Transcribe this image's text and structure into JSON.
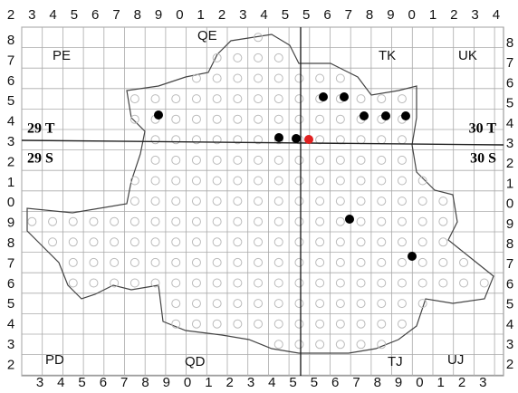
{
  "map": {
    "top_labels": [
      "2",
      "3",
      "4",
      "5",
      "6",
      "7",
      "8",
      "9",
      "0",
      "1",
      "2",
      "3",
      "4",
      "5",
      "5",
      "6",
      "7",
      "8",
      "9",
      "0",
      "1",
      "2",
      "3",
      "4"
    ],
    "bottom_labels": [
      "3",
      "4",
      "5",
      "6",
      "7",
      "8",
      "9",
      "0",
      "1",
      "2",
      "3",
      "4",
      "5",
      "5",
      "6",
      "7",
      "8",
      "9",
      "0",
      "1",
      "2",
      "3"
    ],
    "left_labels": [
      "8",
      "7",
      "6",
      "5",
      "4",
      "3",
      "2",
      "1",
      "0",
      "9",
      "8",
      "7",
      "6",
      "5",
      "4",
      "3",
      "2"
    ],
    "right_labels": [
      "8",
      "7",
      "6",
      "5",
      "4",
      "3",
      "2",
      "1",
      "0",
      "9",
      "8",
      "7",
      "6",
      "5",
      "4",
      "3",
      "2"
    ],
    "squares": [
      "PE",
      "QE",
      "TK",
      "UK",
      "PD",
      "QD",
      "TJ",
      "UJ"
    ],
    "zones": [
      "29 T",
      "30 T",
      "29 S",
      "30 S"
    ]
  }
}
